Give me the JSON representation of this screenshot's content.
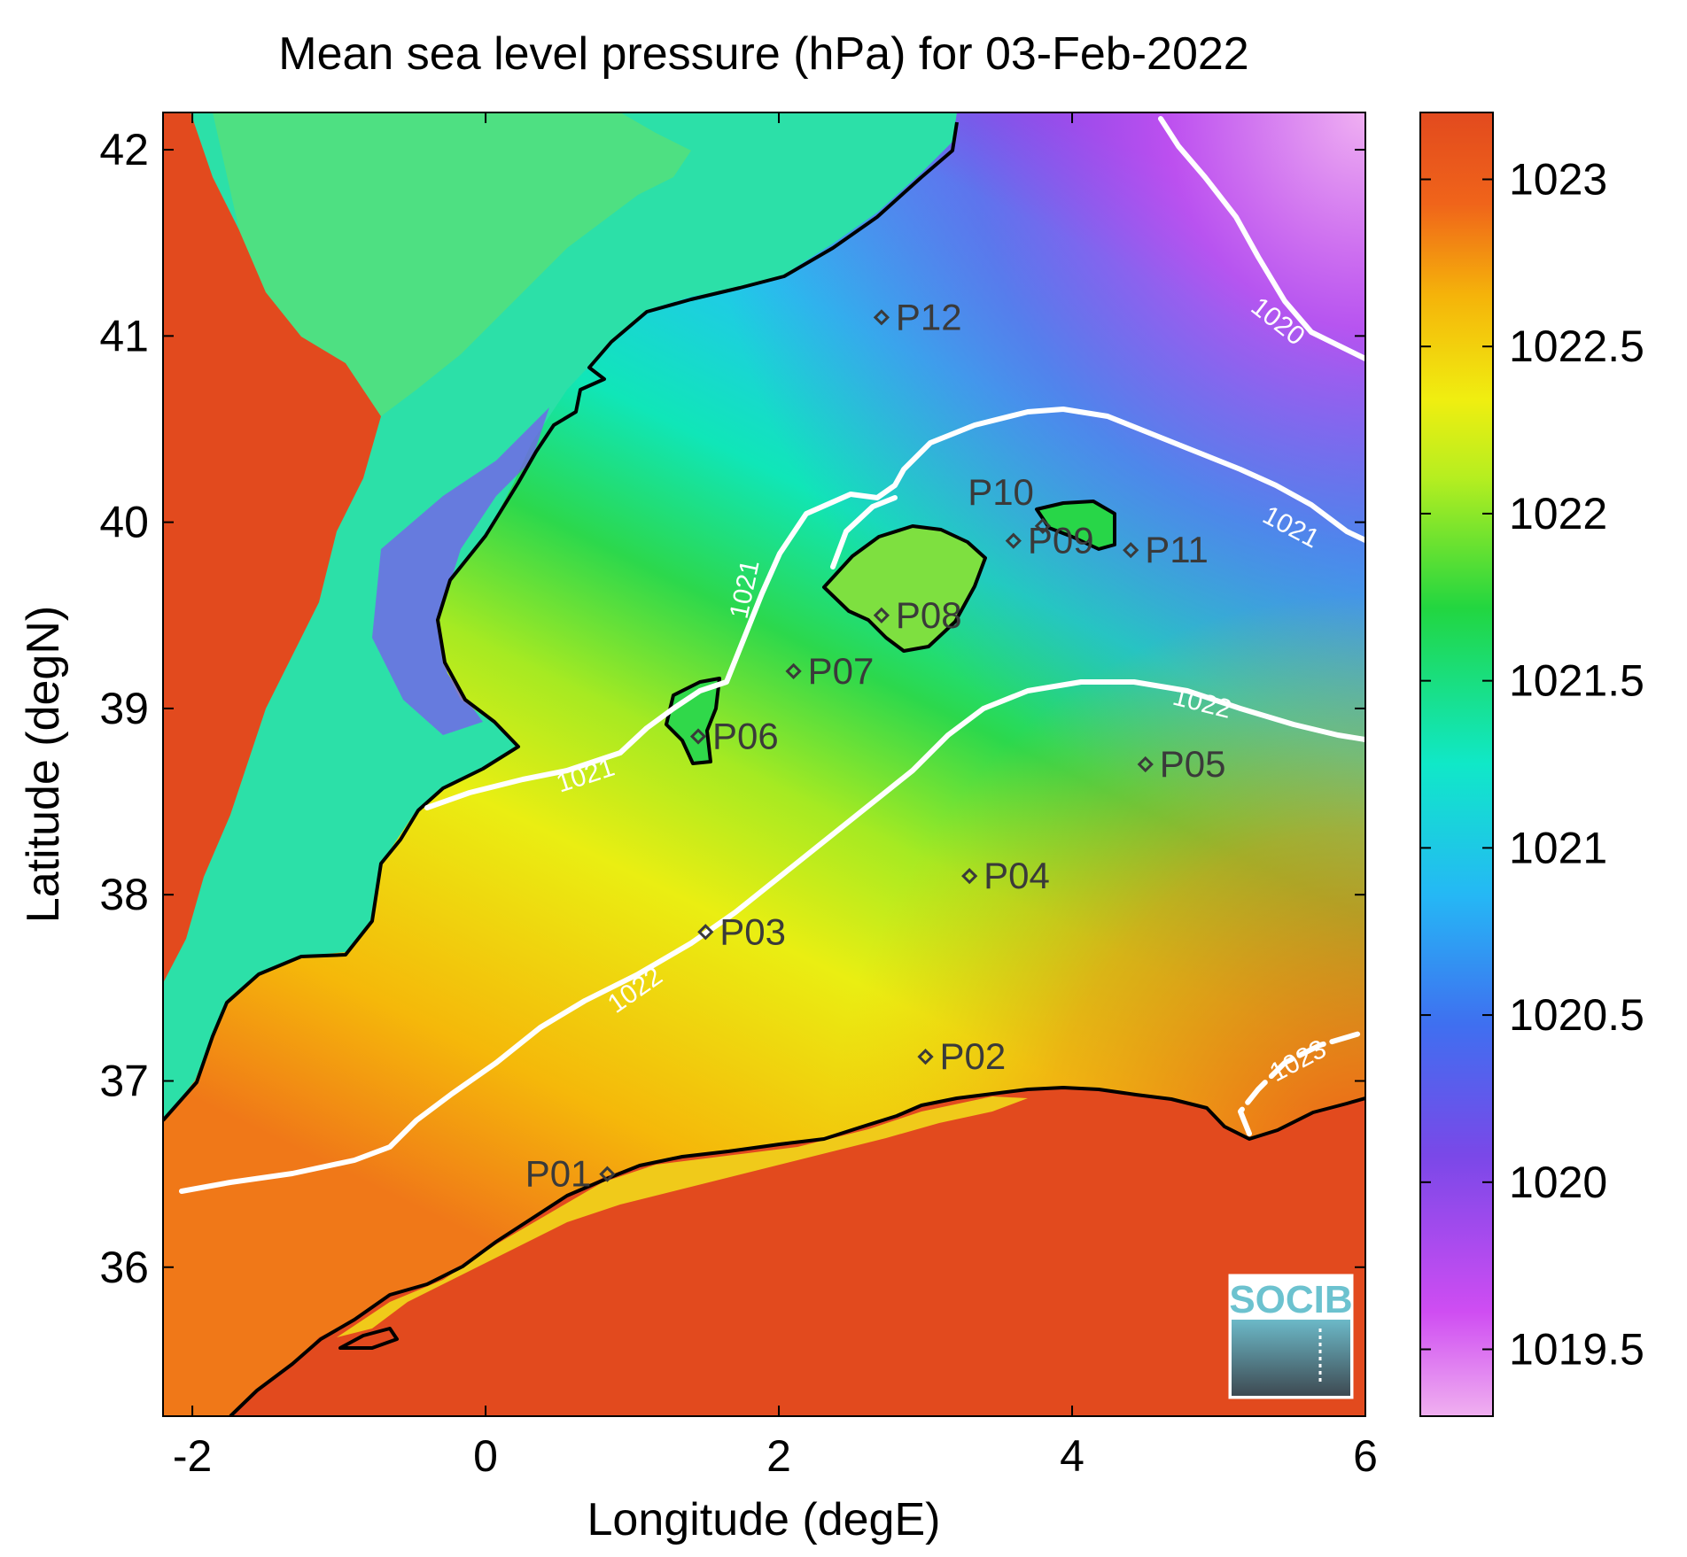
{
  "title": "Mean sea level pressure (hPa) for 03-Feb-2022",
  "xlabel": "Longitude (degE)",
  "ylabel": "Latitude (degN)",
  "logo_text": "SOCIB",
  "colors": {
    "land_high": "#e24a1e",
    "colormap": [
      "#eaa6ee",
      "#cf4df2",
      "#7a48e8",
      "#2f88f0",
      "#1fd0f5",
      "#10e8c8",
      "#30d84a",
      "#a8ec20",
      "#f2ee10",
      "#f5b30a",
      "#f0641a",
      "#e24a1e"
    ],
    "contour": "#ffffff",
    "coast": "#000000",
    "logo": "#6cc2cf"
  },
  "chart_data": {
    "type": "heatmap",
    "title": "Mean sea level pressure (hPa) for 03-Feb-2022",
    "xlabel": "Longitude (degE)",
    "ylabel": "Latitude (degN)",
    "xlim": [
      -2.2,
      6.0
    ],
    "ylim": [
      35.2,
      42.2
    ],
    "x_ticks": [
      -2,
      0,
      2,
      4,
      6
    ],
    "y_ticks": [
      36,
      37,
      38,
      39,
      40,
      41,
      42
    ],
    "colorbar": {
      "range": [
        1019.3,
        1023.2
      ],
      "ticks": [
        1019.5,
        1020,
        1020.5,
        1021,
        1021.5,
        1022,
        1022.5,
        1023
      ]
    },
    "contours": [
      {
        "level": 1020,
        "label": "1020"
      },
      {
        "level": 1021,
        "label": "1021"
      },
      {
        "level": 1022,
        "label": "1022"
      },
      {
        "level": 1023,
        "label": "1023"
      }
    ],
    "stations": [
      {
        "name": "P01",
        "lon": 0.83,
        "lat": 36.5
      },
      {
        "name": "P02",
        "lon": 3.0,
        "lat": 37.13
      },
      {
        "name": "P03",
        "lon": 1.5,
        "lat": 37.8
      },
      {
        "name": "P04",
        "lon": 3.3,
        "lat": 38.1
      },
      {
        "name": "P05",
        "lon": 4.5,
        "lat": 38.7
      },
      {
        "name": "P06",
        "lon": 1.45,
        "lat": 38.85
      },
      {
        "name": "P07",
        "lon": 2.1,
        "lat": 39.2
      },
      {
        "name": "P08",
        "lon": 2.7,
        "lat": 39.5
      },
      {
        "name": "P09",
        "lon": 3.6,
        "lat": 39.9
      },
      {
        "name": "P10",
        "lon": 3.8,
        "lat": 39.98
      },
      {
        "name": "P11",
        "lon": 4.4,
        "lat": 39.85
      },
      {
        "name": "P12",
        "lon": 2.7,
        "lat": 41.1
      }
    ]
  }
}
